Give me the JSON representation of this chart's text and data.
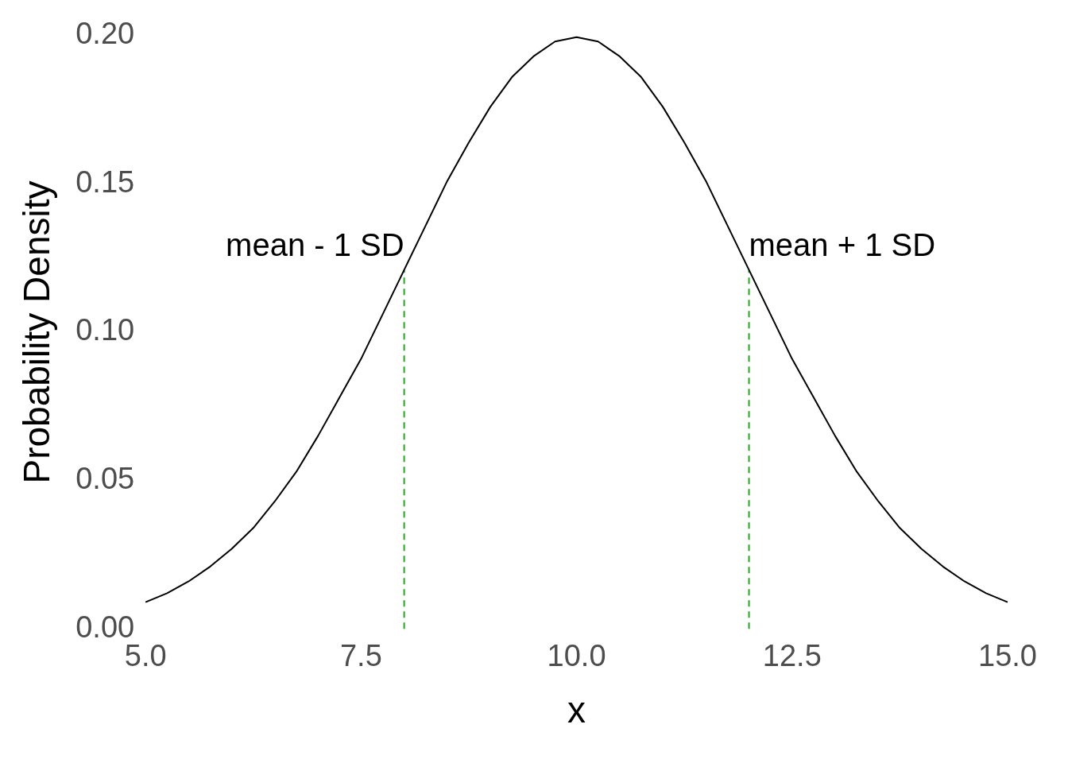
{
  "chart_data": {
    "type": "line",
    "xlabel": "x",
    "ylabel": "Probability Density",
    "xlim": [
      5,
      15
    ],
    "ylim": [
      0,
      0.2
    ],
    "xticks": [
      {
        "value": 5,
        "label": "5.0"
      },
      {
        "value": 7.5,
        "label": "7.5"
      },
      {
        "value": 10,
        "label": "10.0"
      },
      {
        "value": 12.5,
        "label": "12.5"
      },
      {
        "value": 15,
        "label": "15.0"
      }
    ],
    "yticks": [
      {
        "value": 0,
        "label": "0.00"
      },
      {
        "value": 0.05,
        "label": "0.05"
      },
      {
        "value": 0.1,
        "label": "0.10"
      },
      {
        "value": 0.15,
        "label": "0.15"
      },
      {
        "value": 0.2,
        "label": "0.20"
      }
    ],
    "grid": false,
    "legend": false,
    "marker": "none",
    "series": [
      {
        "color": "#000000",
        "line_style": "solid",
        "x": [
          5,
          5.25,
          5.5,
          5.75,
          6,
          6.25,
          6.5,
          6.75,
          7,
          7.25,
          7.5,
          7.75,
          8,
          8.25,
          8.5,
          8.75,
          9,
          9.25,
          9.5,
          9.75,
          10,
          10.25,
          10.5,
          10.75,
          11,
          11.25,
          11.5,
          11.75,
          12,
          12.25,
          12.5,
          12.75,
          13,
          13.25,
          13.5,
          13.75,
          14,
          14.25,
          14.5,
          14.75,
          15
        ],
        "values": [
          0.009,
          0.012,
          0.016,
          0.021,
          0.027,
          0.034,
          0.043,
          0.053,
          0.065,
          0.078,
          0.091,
          0.106,
          0.121,
          0.136,
          0.151,
          0.164,
          0.176,
          0.186,
          0.193,
          0.198,
          0.1995,
          0.198,
          0.193,
          0.186,
          0.176,
          0.164,
          0.151,
          0.136,
          0.121,
          0.106,
          0.091,
          0.078,
          0.065,
          0.053,
          0.043,
          0.034,
          0.027,
          0.021,
          0.016,
          0.012,
          0.009
        ]
      },
      {
        "color": "#22a822",
        "line_style": "dashed",
        "x": [
          8,
          8
        ],
        "values": [
          0,
          0.121
        ]
      },
      {
        "color": "#22a822",
        "line_style": "dashed",
        "x": [
          12,
          12
        ],
        "values": [
          0,
          0.121
        ]
      }
    ],
    "annotations": [
      {
        "text": "mean - 1 SD",
        "x": 8,
        "y": 0.121
      },
      {
        "text": "mean + 1 SD",
        "x": 12,
        "y": 0.121
      }
    ]
  }
}
